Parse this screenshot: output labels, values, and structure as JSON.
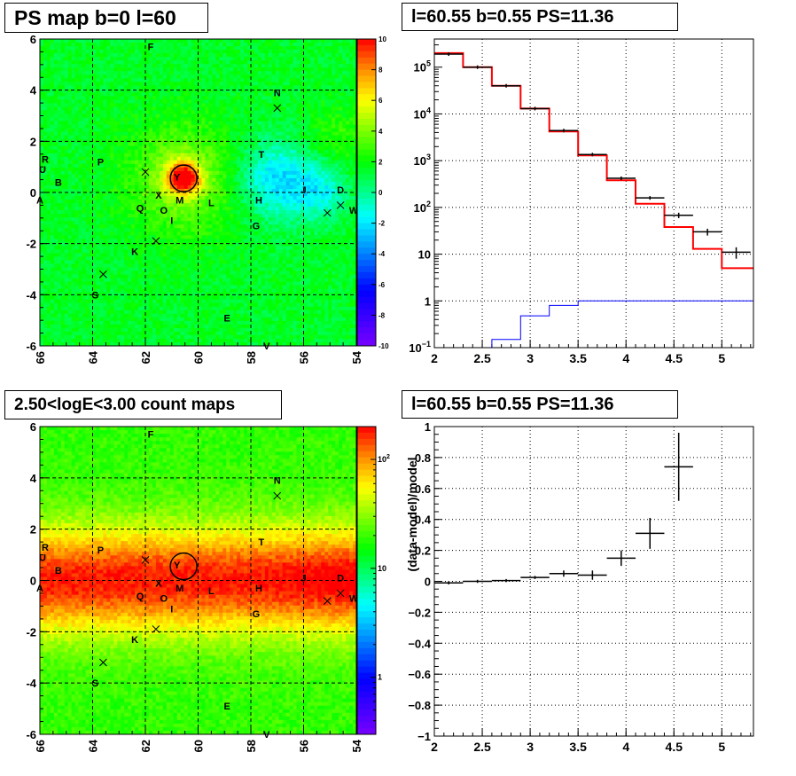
{
  "chart_data": [
    {
      "type": "heatmap",
      "title": "PS map b=0 l=60",
      "xlim": [
        66,
        54
      ],
      "ylim": [
        -6,
        6
      ],
      "x_ticks": [
        "66",
        "64",
        "62",
        "60",
        "58",
        "56",
        "54"
      ],
      "y_ticks": [
        "6",
        "4",
        "2",
        "0",
        "-2",
        "-4",
        "-6"
      ],
      "colorbar": {
        "min": -10,
        "max": 10,
        "ticks": [
          "10",
          "8",
          "6",
          "4",
          "2",
          "0",
          "-2",
          "-4",
          "-6",
          "-8",
          "-10"
        ]
      },
      "source_circle": {
        "l": 60.55,
        "b": 0.55
      },
      "grid": true
    },
    {
      "type": "line",
      "title": "l=60.55 b=0.55 PS=11.36",
      "yscale": "log",
      "xlim": [
        2,
        5.33
      ],
      "ylim": [
        0.1,
        400000
      ],
      "x_ticks": [
        "2",
        "2.5",
        "3",
        "3.5",
        "4",
        "4.5",
        "5"
      ],
      "y_ticks": [
        {
          "base": "10",
          "exp": "5"
        },
        {
          "base": "10",
          "exp": "4"
        },
        {
          "base": "10",
          "exp": "3"
        },
        {
          "base": "10",
          "exp": "2"
        },
        {
          "base": "10",
          "exp": ""
        },
        {
          "base": "1",
          "exp": ""
        },
        {
          "base": "10",
          "exp": "−1"
        }
      ],
      "bin_edges": [
        2.0,
        2.3,
        2.6,
        2.9,
        3.2,
        3.5,
        3.8,
        4.1,
        4.4,
        4.7,
        5.0,
        5.33
      ],
      "series": [
        {
          "color": "#ff0000",
          "values": [
            200000,
            100000,
            40000,
            13000,
            4200,
            1300,
            380,
            120,
            38,
            13,
            5
          ]
        },
        {
          "color": "#0000ff",
          "values": [
            0.1,
            0.1,
            0.15,
            0.48,
            0.8,
            1,
            1,
            1,
            1,
            1,
            1
          ]
        },
        {
          "color": "#000000",
          "points": [
            {
              "x": 2.15,
              "y": 190000,
              "yerr": 1000
            },
            {
              "x": 2.45,
              "y": 100000,
              "yerr": 800
            },
            {
              "x": 2.75,
              "y": 40000,
              "yerr": 500
            },
            {
              "x": 3.05,
              "y": 13000,
              "yerr": 300
            },
            {
              "x": 3.35,
              "y": 4400,
              "yerr": 100
            },
            {
              "x": 3.65,
              "y": 1350,
              "yerr": 40
            },
            {
              "x": 3.95,
              "y": 420,
              "yerr": 25
            },
            {
              "x": 4.25,
              "y": 160,
              "yerr": 14
            },
            {
              "x": 4.55,
              "y": 68,
              "yerr": 9
            },
            {
              "x": 4.85,
              "y": 30,
              "yerr": 5
            },
            {
              "x": 5.15,
              "y": 11,
              "yerr": 3
            }
          ]
        }
      ],
      "grid": true
    },
    {
      "type": "heatmap",
      "title": "2.50<logE<3.00 count maps",
      "xlim": [
        66,
        54
      ],
      "ylim": [
        -6,
        6
      ],
      "x_ticks": [
        "66",
        "64",
        "62",
        "60",
        "58",
        "56",
        "54"
      ],
      "y_ticks": [
        "6",
        "4",
        "2",
        "0",
        "-2",
        "-4",
        "-6"
      ],
      "colorbar": {
        "scale": "log",
        "min": 0.3,
        "max": 200,
        "ticks": [
          {
            "base": "10",
            "exp": "2"
          },
          {
            "base": "10",
            "exp": ""
          },
          {
            "base": "1",
            "exp": ""
          }
        ]
      },
      "source_circle": {
        "l": 60.55,
        "b": 0.55
      },
      "grid": true
    },
    {
      "type": "scatter",
      "title": "l=60.55 b=0.55 PS=11.36",
      "ylabel": "(data-model)/model",
      "xlim": [
        2,
        5.33
      ],
      "ylim": [
        -1,
        1
      ],
      "x_ticks": [
        "2",
        "2.5",
        "3",
        "3.5",
        "4",
        "4.5",
        "5"
      ],
      "y_ticks": [
        "1",
        "0.8",
        "0.6",
        "0.4",
        "0.2",
        "0",
        "−0.2",
        "−0.4",
        "−0.6",
        "−0.8",
        "−1"
      ],
      "points": [
        {
          "x": 2.15,
          "y": -0.01,
          "yerr": 0.01
        },
        {
          "x": 2.45,
          "y": 0.0,
          "yerr": 0.01
        },
        {
          "x": 2.75,
          "y": 0.005,
          "yerr": 0.01
        },
        {
          "x": 3.05,
          "y": 0.025,
          "yerr": 0.01
        },
        {
          "x": 3.35,
          "y": 0.05,
          "yerr": 0.02
        },
        {
          "x": 3.65,
          "y": 0.04,
          "yerr": 0.03
        },
        {
          "x": 3.95,
          "y": 0.15,
          "yerr": 0.05
        },
        {
          "x": 4.25,
          "y": 0.31,
          "yerr": 0.1
        },
        {
          "x": 4.55,
          "y": 0.74,
          "yerr": 0.22
        }
      ],
      "grid": true
    }
  ],
  "sources": [
    {
      "label": "F",
      "l": 61.8,
      "b": 5.7
    },
    {
      "label": "N",
      "l": 57.0,
      "b": 3.9
    },
    {
      "label": "T",
      "l": 57.6,
      "b": 1.5
    },
    {
      "label": "P",
      "l": 63.7,
      "b": 1.2
    },
    {
      "label": "R",
      "l": 65.8,
      "b": 1.3
    },
    {
      "label": "U",
      "l": 65.9,
      "b": 0.9
    },
    {
      "label": "B",
      "l": 65.3,
      "b": 0.4
    },
    {
      "label": "A",
      "l": 66.0,
      "b": -0.3
    },
    {
      "label": "Y",
      "l": 60.8,
      "b": 0.6
    },
    {
      "label": "X",
      "l": 61.5,
      "b": -0.1
    },
    {
      "label": "M",
      "l": 60.7,
      "b": -0.3
    },
    {
      "label": "L",
      "l": 59.5,
      "b": -0.4
    },
    {
      "label": "Q",
      "l": 62.2,
      "b": -0.6
    },
    {
      "label": "O",
      "l": 61.3,
      "b": -0.7
    },
    {
      "label": "I",
      "l": 61.0,
      "b": -1.1
    },
    {
      "label": "H",
      "l": 57.7,
      "b": -0.3
    },
    {
      "label": "J",
      "l": 56.0,
      "b": 0.1
    },
    {
      "label": "D",
      "l": 54.6,
      "b": 0.1
    },
    {
      "label": "W",
      "l": 54.1,
      "b": -0.7
    },
    {
      "label": "G",
      "l": 57.8,
      "b": -1.3
    },
    {
      "label": "K",
      "l": 62.4,
      "b": -2.3
    },
    {
      "label": "S",
      "l": 63.9,
      "b": -4.0
    },
    {
      "label": "E",
      "l": 58.9,
      "b": -4.9
    },
    {
      "label": "V",
      "l": 57.4,
      "b": -6.0
    }
  ],
  "crosses": [
    {
      "l": 57.0,
      "b": 3.3
    },
    {
      "l": 62.0,
      "b": 0.8
    },
    {
      "l": 61.6,
      "b": -1.9
    },
    {
      "l": 63.6,
      "b": -3.2
    },
    {
      "l": 55.1,
      "b": -0.8
    },
    {
      "l": 54.6,
      "b": -0.5
    }
  ]
}
